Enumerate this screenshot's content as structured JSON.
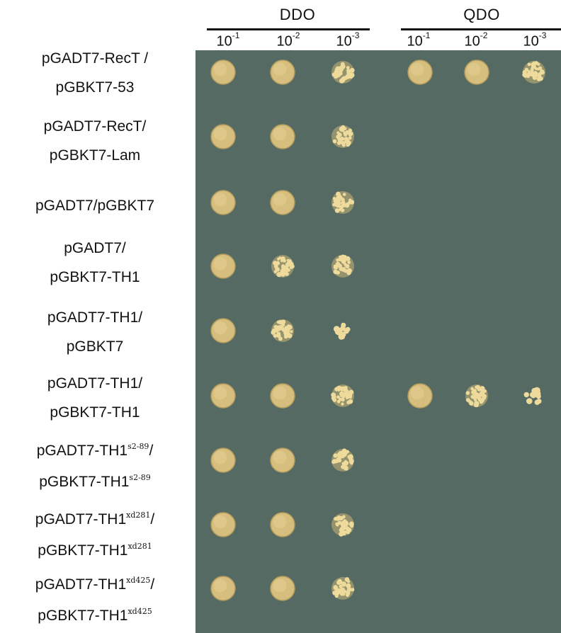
{
  "groups": [
    {
      "name": "DDO",
      "dilutions": [
        {
          "base": "10",
          "exp": "-1"
        },
        {
          "base": "10",
          "exp": "-2"
        },
        {
          "base": "10",
          "exp": "-3"
        }
      ]
    },
    {
      "name": "QDO",
      "dilutions": [
        {
          "base": "10",
          "exp": "-1"
        },
        {
          "base": "10",
          "exp": "-2"
        },
        {
          "base": "10",
          "exp": "-3"
        }
      ]
    }
  ],
  "rows": [
    {
      "line1": "pGADT7-RecT /",
      "line2": "pGBKT7-53",
      "ddo": [
        "solid",
        "solid",
        "colonies"
      ],
      "qdo": [
        "solid",
        "solid",
        "colonies"
      ]
    },
    {
      "line1": "pGADT7-RecT/",
      "line2": "pGBKT7-Lam",
      "ddo": [
        "solid",
        "solid",
        "colonies"
      ],
      "qdo": [
        "none",
        "none",
        "none"
      ]
    },
    {
      "single": "pGADT7/pGBKT7",
      "ddo": [
        "solid",
        "solid",
        "colonies"
      ],
      "qdo": [
        "none",
        "none",
        "none"
      ]
    },
    {
      "line1": "pGADT7/",
      "line2": "pGBKT7-TH1",
      "ddo": [
        "solid",
        "colonies",
        "colonies"
      ],
      "qdo": [
        "none",
        "none",
        "none"
      ]
    },
    {
      "line1": "pGADT7-TH1/",
      "line2": "pGBKT7",
      "ddo": [
        "solid",
        "colonies",
        "sparse"
      ],
      "qdo": [
        "none",
        "none",
        "none"
      ]
    },
    {
      "line1": "pGADT7-TH1/",
      "line2": "pGBKT7-TH1",
      "ddo": [
        "solid",
        "solid",
        "colonies"
      ],
      "qdo": [
        "solid",
        "colonies",
        "sparse"
      ]
    },
    {
      "line1": "pGADT7-TH1",
      "sup1": "s2-89",
      "tail1": "/",
      "line2": "pGBKT7-TH1",
      "sup2": "s2-89",
      "ddo": [
        "solid",
        "solid",
        "colonies"
      ],
      "qdo": [
        "none",
        "none",
        "none"
      ]
    },
    {
      "line1": "pGADT7-TH1",
      "sup1": "xd281",
      "tail1": "/",
      "line2": "pGBKT7-TH1",
      "sup2": "xd281",
      "ddo": [
        "solid",
        "solid",
        "colonies"
      ],
      "qdo": [
        "none",
        "none",
        "none"
      ]
    },
    {
      "line1": "pGADT7-TH1",
      "sup1": "xd425",
      "tail1": "/",
      "line2": "pGBKT7-TH1",
      "sup2": "xd425",
      "ddo": [
        "solid",
        "solid",
        "colonies"
      ],
      "qdo": [
        "none",
        "none",
        "none"
      ]
    }
  ],
  "colors": {
    "plate": "#566a64",
    "spot": "#d6bf7e",
    "spot_edge": "#b39b5c",
    "colony": "#eedb9c"
  }
}
